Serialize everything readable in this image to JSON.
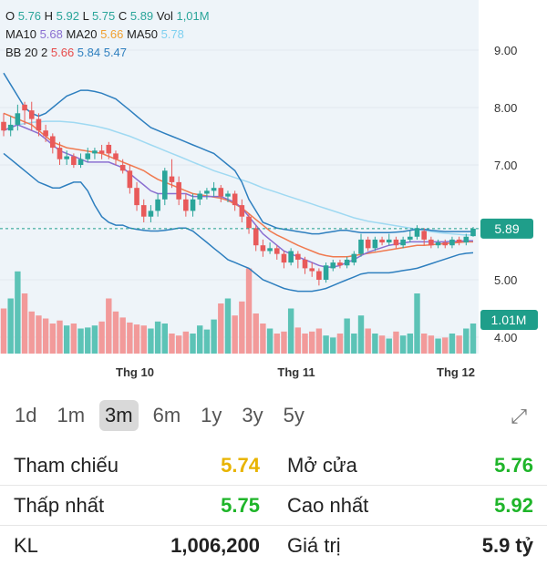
{
  "legend": {
    "ohlc": [
      {
        "label": "O",
        "value": "5.76",
        "color": "#2aa59a"
      },
      {
        "label": "H",
        "value": "5.92",
        "color": "#2aa59a"
      },
      {
        "label": "L",
        "value": "5.75",
        "color": "#2aa59a"
      },
      {
        "label": "C",
        "value": "5.89",
        "color": "#2aa59a"
      },
      {
        "label": "Vol",
        "value": "1,01M",
        "color": "#2aa59a"
      }
    ],
    "ma": [
      {
        "label": "MA10",
        "value": "5.68",
        "color": "#8a6fd1"
      },
      {
        "label": "MA20",
        "value": "5.66",
        "color": "#f0a030"
      },
      {
        "label": "MA50",
        "value": "5.78",
        "color": "#7fd0f0"
      }
    ],
    "bb": {
      "label": "BB 20 2",
      "values": [
        {
          "v": "5.66",
          "color": "#e84b4b"
        },
        {
          "v": "5.84",
          "color": "#2e7fbf"
        },
        {
          "v": "5.47",
          "color": "#2e7fbf"
        }
      ]
    }
  },
  "price_badge": "5.89",
  "volume_badge": "1.01M",
  "chart_data": {
    "type": "candlestick",
    "y_ticks": [
      "9.00",
      "8.00",
      "7.00",
      "6.00",
      "5.00",
      "4.00"
    ],
    "x_ticks": [
      "Thg 10",
      "Thg 11",
      "Thg 12"
    ],
    "last_price": 5.89,
    "candles": [
      [
        7.75,
        7.6,
        7.9,
        7.5
      ],
      [
        7.6,
        7.7,
        7.85,
        7.5
      ],
      [
        7.7,
        7.9,
        8.05,
        7.6
      ],
      [
        8.05,
        7.95,
        8.1,
        7.7
      ],
      [
        7.95,
        7.8,
        8.1,
        7.6
      ],
      [
        7.8,
        7.6,
        7.9,
        7.5
      ],
      [
        7.6,
        7.5,
        7.7,
        7.4
      ],
      [
        7.5,
        7.3,
        7.55,
        7.2
      ],
      [
        7.3,
        7.1,
        7.4,
        7.0
      ],
      [
        7.1,
        7.15,
        7.25,
        7.0
      ],
      [
        7.15,
        7.0,
        7.2,
        6.95
      ],
      [
        7.0,
        7.1,
        7.2,
        6.95
      ],
      [
        7.1,
        7.2,
        7.3,
        7.05
      ],
      [
        7.2,
        7.25,
        7.3,
        7.1
      ],
      [
        7.25,
        7.2,
        7.35,
        7.1
      ],
      [
        7.35,
        7.2,
        7.4,
        7.1
      ],
      [
        7.2,
        7.1,
        7.25,
        7.0
      ],
      [
        7.0,
        6.9,
        7.1,
        6.85
      ],
      [
        6.9,
        6.6,
        7.0,
        6.5
      ],
      [
        6.6,
        6.3,
        6.7,
        6.2
      ],
      [
        6.3,
        6.1,
        6.4,
        6.0
      ],
      [
        6.1,
        6.2,
        6.3,
        6.0
      ],
      [
        6.2,
        6.4,
        6.5,
        6.1
      ],
      [
        6.4,
        6.9,
        6.95,
        6.3
      ],
      [
        6.8,
        6.7,
        7.1,
        6.6
      ],
      [
        6.7,
        6.4,
        6.8,
        6.3
      ],
      [
        6.4,
        6.2,
        6.5,
        6.1
      ],
      [
        6.2,
        6.4,
        6.5,
        6.1
      ],
      [
        6.4,
        6.5,
        6.55,
        6.3
      ],
      [
        6.5,
        6.55,
        6.6,
        6.4
      ],
      [
        6.55,
        6.6,
        6.7,
        6.45
      ],
      [
        6.6,
        6.45,
        6.65,
        6.35
      ],
      [
        6.45,
        6.5,
        6.55,
        6.35
      ],
      [
        6.5,
        6.3,
        6.55,
        6.2
      ],
      [
        6.3,
        6.1,
        6.4,
        6.0
      ],
      [
        6.1,
        5.9,
        6.15,
        5.8
      ],
      [
        5.9,
        5.6,
        5.95,
        5.5
      ],
      [
        5.6,
        5.5,
        5.7,
        5.4
      ],
      [
        5.5,
        5.55,
        5.65,
        5.45
      ],
      [
        5.55,
        5.45,
        5.6,
        5.35
      ],
      [
        5.45,
        5.3,
        5.5,
        5.2
      ],
      [
        5.3,
        5.5,
        5.55,
        5.25
      ],
      [
        5.45,
        5.35,
        5.5,
        5.2
      ],
      [
        5.35,
        5.2,
        5.4,
        5.1
      ],
      [
        5.2,
        5.15,
        5.3,
        5.05
      ],
      [
        5.15,
        5.0,
        5.2,
        4.9
      ],
      [
        5.0,
        5.25,
        5.3,
        4.95
      ],
      [
        5.2,
        5.3,
        5.35,
        5.15
      ],
      [
        5.3,
        5.25,
        5.35,
        5.2
      ],
      [
        5.25,
        5.35,
        5.4,
        5.2
      ],
      [
        5.3,
        5.45,
        5.5,
        5.25
      ],
      [
        5.45,
        5.7,
        5.8,
        5.4
      ],
      [
        5.7,
        5.55,
        5.75,
        5.5
      ],
      [
        5.55,
        5.7,
        5.75,
        5.5
      ],
      [
        5.7,
        5.65,
        5.75,
        5.6
      ],
      [
        5.65,
        5.7,
        5.8,
        5.6
      ],
      [
        5.7,
        5.6,
        5.75,
        5.55
      ],
      [
        5.6,
        5.7,
        5.75,
        5.55
      ],
      [
        5.7,
        5.75,
        5.85,
        5.65
      ],
      [
        5.75,
        5.9,
        5.95,
        5.7
      ],
      [
        5.85,
        5.7,
        5.9,
        5.6
      ],
      [
        5.7,
        5.6,
        5.75,
        5.55
      ],
      [
        5.6,
        5.65,
        5.7,
        5.55
      ],
      [
        5.65,
        5.6,
        5.7,
        5.55
      ],
      [
        5.6,
        5.7,
        5.75,
        5.55
      ],
      [
        5.7,
        5.65,
        5.75,
        5.6
      ],
      [
        5.65,
        5.75,
        5.8,
        5.6
      ],
      [
        5.76,
        5.89,
        5.92,
        5.75
      ]
    ],
    "volumes": [
      0.45,
      0.55,
      0.82,
      0.6,
      0.42,
      0.38,
      0.35,
      0.3,
      0.33,
      0.28,
      0.3,
      0.25,
      0.26,
      0.28,
      0.32,
      0.55,
      0.42,
      0.36,
      0.31,
      0.29,
      0.28,
      0.25,
      0.32,
      0.3,
      0.2,
      0.18,
      0.22,
      0.2,
      0.28,
      0.24,
      0.34,
      0.5,
      0.55,
      0.38,
      0.52,
      0.85,
      0.4,
      0.3,
      0.25,
      0.2,
      0.22,
      0.45,
      0.26,
      0.2,
      0.22,
      0.25,
      0.18,
      0.16,
      0.2,
      0.35,
      0.2,
      0.38,
      0.25,
      0.2,
      0.18,
      0.15,
      0.22,
      0.18,
      0.2,
      0.6,
      0.2,
      0.18,
      0.15,
      0.16,
      0.2,
      0.18,
      0.25,
      0.3
    ],
    "bb_upper": [
      8.6,
      8.4,
      8.2,
      8.0,
      7.9,
      7.85,
      7.9,
      8.0,
      8.1,
      8.2,
      8.25,
      8.3,
      8.3,
      8.28,
      8.25,
      8.2,
      8.15,
      8.05,
      7.95,
      7.85,
      7.75,
      7.65,
      7.6,
      7.55,
      7.5,
      7.45,
      7.4,
      7.35,
      7.3,
      7.25,
      7.2,
      7.1,
      7.0,
      6.9,
      6.7,
      6.4,
      6.2,
      6.0,
      5.95,
      5.9,
      5.88,
      5.86,
      5.84,
      5.82,
      5.8,
      5.8,
      5.82,
      5.84,
      5.86,
      5.86,
      5.84,
      5.82,
      5.82,
      5.82,
      5.82,
      5.82,
      5.83,
      5.84,
      5.86,
      5.88,
      5.88,
      5.86,
      5.85,
      5.84,
      5.84,
      5.84,
      5.84,
      5.84
    ],
    "bb_lower": [
      7.2,
      7.1,
      7.0,
      6.9,
      6.8,
      6.7,
      6.65,
      6.6,
      6.6,
      6.65,
      6.7,
      6.7,
      6.55,
      6.3,
      6.1,
      6.0,
      5.95,
      5.95,
      5.9,
      5.88,
      5.86,
      5.85,
      5.85,
      5.86,
      5.88,
      5.9,
      5.9,
      5.85,
      5.75,
      5.65,
      5.55,
      5.45,
      5.35,
      5.3,
      5.25,
      5.2,
      5.1,
      5.0,
      4.95,
      4.9,
      4.85,
      4.82,
      4.8,
      4.8,
      4.8,
      4.82,
      4.85,
      4.9,
      4.95,
      5.0,
      5.05,
      5.1,
      5.12,
      5.12,
      5.12,
      5.12,
      5.14,
      5.16,
      5.18,
      5.2,
      5.24,
      5.28,
      5.32,
      5.36,
      5.4,
      5.44,
      5.46,
      5.47
    ],
    "ma10": [
      7.6,
      7.65,
      7.7,
      7.65,
      7.6,
      7.55,
      7.45,
      7.35,
      7.25,
      7.2,
      7.15,
      7.1,
      7.05,
      7.05,
      7.05,
      7.05,
      7.0,
      6.95,
      6.85,
      6.75,
      6.65,
      6.55,
      6.5,
      6.5,
      6.5,
      6.5,
      6.5,
      6.45,
      6.45,
      6.45,
      6.45,
      6.45,
      6.4,
      6.35,
      6.25,
      6.1,
      5.95,
      5.8,
      5.7,
      5.6,
      5.5,
      5.45,
      5.4,
      5.35,
      5.3,
      5.25,
      5.22,
      5.22,
      5.25,
      5.3,
      5.35,
      5.42,
      5.48,
      5.52,
      5.56,
      5.6,
      5.62,
      5.64,
      5.66,
      5.66,
      5.66,
      5.66,
      5.66,
      5.66,
      5.67,
      5.67,
      5.68,
      5.68
    ],
    "ma20": [
      7.9,
      7.85,
      7.8,
      7.75,
      7.7,
      7.6,
      7.5,
      7.4,
      7.35,
      7.3,
      7.28,
      7.26,
      7.24,
      7.22,
      7.2,
      7.15,
      7.1,
      7.05,
      7.0,
      6.95,
      6.9,
      6.82,
      6.75,
      6.7,
      6.65,
      6.6,
      6.55,
      6.5,
      6.48,
      6.46,
      6.44,
      6.42,
      6.38,
      6.32,
      6.25,
      6.15,
      6.05,
      5.95,
      5.85,
      5.78,
      5.72,
      5.66,
      5.6,
      5.55,
      5.5,
      5.45,
      5.42,
      5.4,
      5.4,
      5.4,
      5.42,
      5.44,
      5.46,
      5.48,
      5.5,
      5.52,
      5.54,
      5.56,
      5.58,
      5.6,
      5.6,
      5.61,
      5.62,
      5.63,
      5.64,
      5.65,
      5.66,
      5.66
    ],
    "ma50": [
      7.6,
      7.65,
      7.7,
      7.72,
      7.74,
      7.75,
      7.76,
      7.76,
      7.76,
      7.75,
      7.74,
      7.72,
      7.7,
      7.68,
      7.65,
      7.62,
      7.58,
      7.54,
      7.5,
      7.45,
      7.4,
      7.35,
      7.3,
      7.25,
      7.2,
      7.15,
      7.1,
      7.05,
      7.0,
      6.95,
      6.9,
      6.86,
      6.82,
      6.78,
      6.74,
      6.7,
      6.65,
      6.6,
      6.56,
      6.52,
      6.48,
      6.44,
      6.4,
      6.36,
      6.32,
      6.28,
      6.24,
      6.2,
      6.16,
      6.12,
      6.08,
      6.05,
      6.02,
      6.0,
      5.98,
      5.96,
      5.94,
      5.92,
      5.9,
      5.88,
      5.86,
      5.84,
      5.82,
      5.81,
      5.8,
      5.79,
      5.78,
      5.78
    ]
  },
  "timeframes": [
    "1d",
    "1m",
    "3m",
    "6m",
    "1y",
    "3y",
    "5y"
  ],
  "active_timeframe": "3m",
  "stats": [
    {
      "l_label": "Tham chiếu",
      "l_value": "5.74",
      "l_color": "#e8b400",
      "r_label": "Mở cửa",
      "r_value": "5.76",
      "r_color": "#1fb52a"
    },
    {
      "l_label": "Thấp nhất",
      "l_value": "5.75",
      "l_color": "#1fb52a",
      "r_label": "Cao nhất",
      "r_value": "5.92",
      "r_color": "#1fb52a"
    },
    {
      "l_label": "KL",
      "l_value": "1,006,200",
      "l_color": "#222222",
      "r_label": "Giá trị",
      "r_value": "5.9 tỷ",
      "r_color": "#222222"
    }
  ],
  "colors": {
    "up": "#2aa59a",
    "down": "#e85a5a",
    "vol_up": "#5cc3b6",
    "vol_down": "#f29a9a",
    "bb": "#2e7fbf",
    "ma10": "#8a6fd1",
    "ma20": "#f07a50",
    "ma50": "#9fd9f2",
    "badge": "#1f9e8a"
  }
}
